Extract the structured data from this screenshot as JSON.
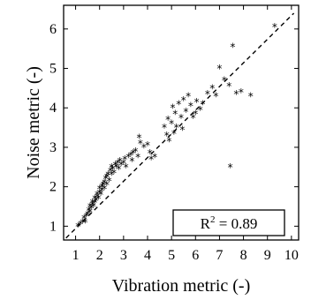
{
  "chart_data": {
    "type": "scatter",
    "title": "",
    "xlabel": "Vibration metric (-)",
    "ylabel": "Noise metric (-)",
    "xlim": [
      0.5,
      10.3
    ],
    "ylim": [
      0.65,
      6.6
    ],
    "xticks": [
      "1",
      "2",
      "3",
      "4",
      "5",
      "6",
      "7",
      "8",
      "9",
      "10"
    ],
    "yticks": [
      "1",
      "2",
      "3",
      "4",
      "5",
      "6"
    ],
    "marker": "*",
    "annotation": {
      "r2_prefix": "R",
      "r2_exponent": "2",
      "r2_suffix": " = 0.89"
    },
    "fit_line": {
      "style": "dashed",
      "x": [
        0.6,
        10.1
      ],
      "y": [
        0.7,
        6.4
      ]
    },
    "points": [
      [
        1.1,
        1.0
      ],
      [
        1.2,
        1.05
      ],
      [
        1.3,
        1.1
      ],
      [
        1.35,
        1.2
      ],
      [
        1.4,
        1.1
      ],
      [
        1.45,
        1.25
      ],
      [
        1.5,
        1.3
      ],
      [
        1.55,
        1.4
      ],
      [
        1.6,
        1.35
      ],
      [
        1.6,
        1.5
      ],
      [
        1.65,
        1.45
      ],
      [
        1.7,
        1.55
      ],
      [
        1.7,
        1.6
      ],
      [
        1.75,
        1.5
      ],
      [
        1.8,
        1.6
      ],
      [
        1.8,
        1.7
      ],
      [
        1.85,
        1.65
      ],
      [
        1.9,
        1.75
      ],
      [
        1.9,
        1.8
      ],
      [
        1.95,
        1.7
      ],
      [
        2.0,
        1.85
      ],
      [
        2.0,
        1.95
      ],
      [
        2.05,
        1.8
      ],
      [
        2.1,
        1.9
      ],
      [
        2.1,
        2.0
      ],
      [
        2.15,
        2.05
      ],
      [
        2.2,
        1.95
      ],
      [
        2.2,
        2.1
      ],
      [
        2.25,
        2.2
      ],
      [
        2.3,
        2.05
      ],
      [
        2.3,
        2.25
      ],
      [
        2.35,
        2.3
      ],
      [
        2.4,
        2.15
      ],
      [
        2.45,
        2.4
      ],
      [
        2.5,
        2.3
      ],
      [
        2.5,
        2.5
      ],
      [
        2.55,
        2.45
      ],
      [
        2.6,
        2.35
      ],
      [
        2.65,
        2.55
      ],
      [
        2.7,
        2.5
      ],
      [
        2.75,
        2.6
      ],
      [
        2.8,
        2.45
      ],
      [
        2.85,
        2.65
      ],
      [
        2.9,
        2.55
      ],
      [
        3.0,
        2.6
      ],
      [
        3.05,
        2.7
      ],
      [
        3.1,
        2.5
      ],
      [
        3.2,
        2.75
      ],
      [
        3.3,
        2.8
      ],
      [
        3.35,
        2.65
      ],
      [
        3.4,
        2.85
      ],
      [
        3.5,
        2.9
      ],
      [
        3.6,
        2.75
      ],
      [
        3.65,
        3.25
      ],
      [
        3.7,
        3.1
      ],
      [
        3.85,
        3.0
      ],
      [
        4.0,
        3.05
      ],
      [
        4.1,
        2.85
      ],
      [
        4.15,
        2.7
      ],
      [
        4.3,
        2.75
      ],
      [
        4.7,
        3.5
      ],
      [
        4.8,
        3.3
      ],
      [
        4.85,
        3.7
      ],
      [
        4.9,
        3.15
      ],
      [
        5.0,
        3.6
      ],
      [
        5.05,
        4.0
      ],
      [
        5.1,
        3.35
      ],
      [
        5.15,
        3.85
      ],
      [
        5.2,
        3.5
      ],
      [
        5.3,
        4.1
      ],
      [
        5.4,
        3.75
      ],
      [
        5.45,
        3.45
      ],
      [
        5.5,
        4.2
      ],
      [
        5.6,
        3.9
      ],
      [
        5.7,
        4.3
      ],
      [
        5.8,
        4.05
      ],
      [
        5.9,
        3.75
      ],
      [
        6.0,
        3.85
      ],
      [
        6.05,
        4.15
      ],
      [
        6.2,
        3.95
      ],
      [
        6.3,
        4.1
      ],
      [
        6.5,
        4.35
      ],
      [
        6.7,
        4.5
      ],
      [
        6.85,
        4.3
      ],
      [
        7.0,
        5.0
      ],
      [
        7.2,
        4.7
      ],
      [
        7.4,
        4.55
      ],
      [
        7.45,
        2.5
      ],
      [
        7.55,
        5.55
      ],
      [
        7.7,
        4.35
      ],
      [
        7.9,
        4.4
      ],
      [
        8.3,
        4.3
      ],
      [
        9.3,
        6.05
      ]
    ]
  }
}
